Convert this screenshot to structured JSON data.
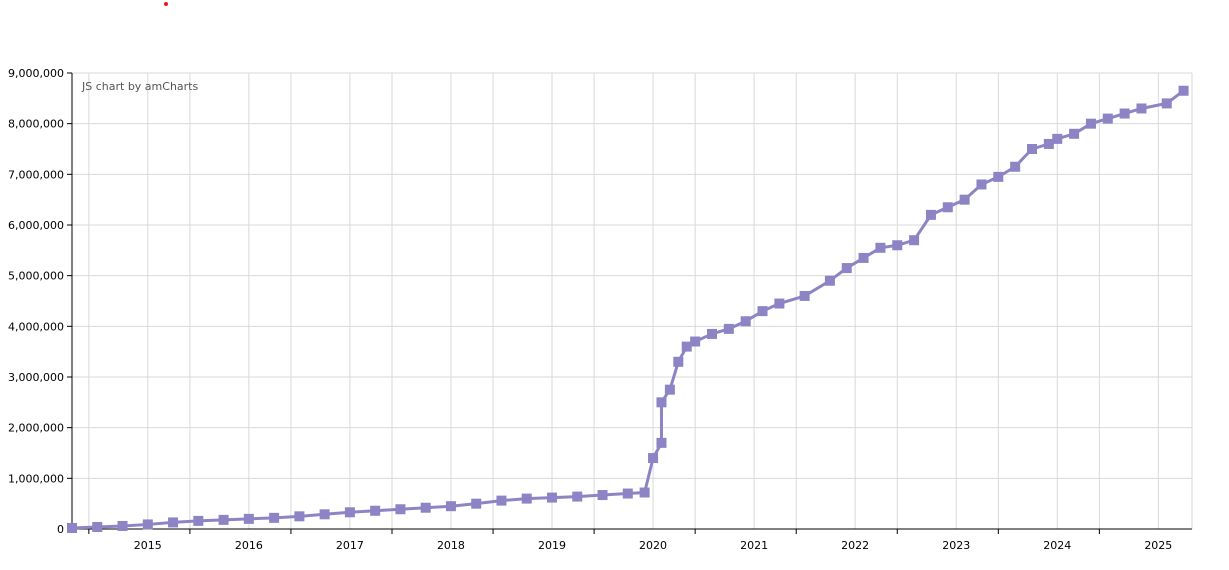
{
  "credit": "JS chart by amCharts",
  "colors": {
    "series": "#8c84c4",
    "grid": "#d9d9d9",
    "axis": "#000000",
    "background": "#ffffff",
    "dot": "#e0201b"
  },
  "chart_data": {
    "type": "line",
    "title": "",
    "xlabel": "",
    "ylabel": "",
    "x_tick_labels": [
      "2015",
      "2016",
      "2017",
      "2018",
      "2019",
      "2020",
      "2021",
      "2022",
      "2023",
      "2024",
      "2025"
    ],
    "y_tick_labels": [
      "0",
      "1,000,000",
      "2,000,000",
      "3,000,000",
      "4,000,000",
      "5,000,000",
      "6,000,000",
      "7,000,000",
      "8,000,000",
      "9,000,000"
    ],
    "xlim": [
      "2014-05",
      "2025-06"
    ],
    "ylim": [
      0,
      9000000
    ],
    "grid": true,
    "series": [
      {
        "x": [
          "2014-05",
          "2014-08",
          "2014-11",
          "2015-02",
          "2015-05",
          "2015-08",
          "2015-11",
          "2016-02",
          "2016-05",
          "2016-08",
          "2016-11",
          "2017-02",
          "2017-05",
          "2017-08",
          "2017-11",
          "2018-02",
          "2018-05",
          "2018-08",
          "2018-11",
          "2019-02",
          "2019-05",
          "2019-08",
          "2019-11",
          "2020-01",
          "2020-02",
          "2020-03",
          "2020-03",
          "2020-04",
          "2020-05",
          "2020-06",
          "2020-07",
          "2020-09",
          "2020-11",
          "2021-01",
          "2021-03",
          "2021-05",
          "2021-08",
          "2021-11",
          "2022-01",
          "2022-03",
          "2022-05",
          "2022-07",
          "2022-09",
          "2022-11",
          "2023-01",
          "2023-03",
          "2023-05",
          "2023-07",
          "2023-09",
          "2023-11",
          "2024-01",
          "2024-02",
          "2024-04",
          "2024-06",
          "2024-08",
          "2024-10",
          "2024-12",
          "2025-03",
          "2025-05"
        ],
        "y": [
          20000,
          40000,
          60000,
          90000,
          130000,
          160000,
          180000,
          200000,
          220000,
          250000,
          290000,
          330000,
          360000,
          390000,
          420000,
          450000,
          500000,
          560000,
          600000,
          620000,
          640000,
          670000,
          700000,
          720000,
          1400000,
          1700000,
          2500000,
          2750000,
          3300000,
          3600000,
          3700000,
          3850000,
          3950000,
          4100000,
          4300000,
          4450000,
          4600000,
          4900000,
          5150000,
          5350000,
          5550000,
          5600000,
          5700000,
          6200000,
          6350000,
          6500000,
          6800000,
          6950000,
          7150000,
          7500000,
          7600000,
          7700000,
          7800000,
          8000000,
          8100000,
          8200000,
          8300000,
          8400000,
          8650000
        ]
      }
    ]
  }
}
